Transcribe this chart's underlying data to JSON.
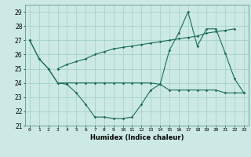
{
  "title": "",
  "xlabel": "Humidex (Indice chaleur)",
  "x": [
    0,
    1,
    2,
    3,
    4,
    5,
    6,
    7,
    8,
    9,
    10,
    11,
    12,
    13,
    14,
    15,
    16,
    17,
    18,
    19,
    20,
    21,
    22,
    23
  ],
  "line1": [
    27,
    25.7,
    25.0,
    24.0,
    23.9,
    23.3,
    22.5,
    21.6,
    21.6,
    21.5,
    21.5,
    21.6,
    22.5,
    23.5,
    23.9,
    26.3,
    27.5,
    29.0,
    26.6,
    27.8,
    27.8,
    26.1,
    24.3,
    23.3
  ],
  "line2": [
    27,
    25.7,
    25.0,
    24.0,
    24.0,
    24.0,
    24.0,
    24.0,
    24.0,
    24.0,
    24.0,
    24.0,
    24.0,
    24.0,
    23.9,
    23.5,
    23.5,
    23.5,
    23.5,
    23.5,
    23.5,
    23.3,
    23.3,
    23.3
  ],
  "line3": [
    null,
    null,
    null,
    25.0,
    25.3,
    25.5,
    25.7,
    26.0,
    26.2,
    26.4,
    26.5,
    26.6,
    26.7,
    26.8,
    26.9,
    27.0,
    27.1,
    27.2,
    27.3,
    27.5,
    27.6,
    27.7,
    27.8,
    null
  ],
  "ylim": [
    21,
    29.5
  ],
  "yticks": [
    21,
    22,
    23,
    24,
    25,
    26,
    27,
    28,
    29
  ],
  "bg_color": "#cce9e5",
  "line_color": "#1a6b5a",
  "grid_color": "#9ececa"
}
